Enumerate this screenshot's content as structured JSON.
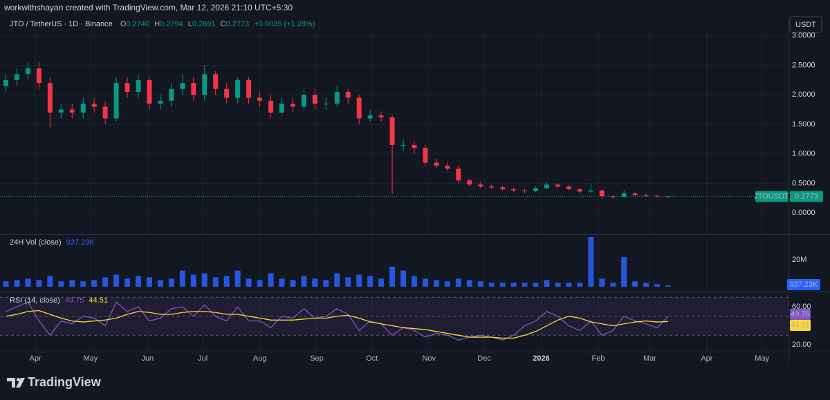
{
  "header": {
    "credit": "workwithshayan created with TradingView.com, Mar 12, 2026 21:10 UTC+5:30",
    "symbol": "JTO / TetherUS · 1D · Binance",
    "ohlc": [
      {
        "key": "O",
        "value": "0.2740"
      },
      {
        "key": "H",
        "value": "0.2794"
      },
      {
        "key": "L",
        "value": "0.2691"
      },
      {
        "key": "C",
        "value": "0.2773"
      }
    ],
    "change": "+0.0035 (+1.28%)"
  },
  "footer": {
    "brand": "TradingView"
  },
  "chart_data": [
    {
      "type": "candlestick",
      "currency": "USDT",
      "last_label": "JTOUSDT",
      "up_color": "#089981",
      "down_color": "#f23645",
      "grid": true,
      "x": [
        -16,
        -10,
        -4,
        2,
        8,
        14,
        20,
        26,
        32,
        38,
        44,
        50,
        56,
        62,
        68,
        74,
        80,
        86,
        92,
        98,
        104,
        110,
        116,
        122,
        128,
        134,
        140,
        146,
        152,
        158,
        164,
        170,
        176,
        182,
        188,
        194,
        200,
        206,
        212,
        218,
        224,
        230,
        236,
        242,
        248,
        254,
        260,
        266,
        272,
        278,
        284,
        290,
        296,
        302,
        308,
        314,
        320,
        326,
        332,
        338,
        344
      ],
      "open": [
        2.15,
        2.25,
        2.35,
        2.45,
        2.2,
        1.7,
        1.75,
        1.7,
        1.85,
        1.8,
        1.6,
        2.2,
        2.05,
        2.25,
        1.85,
        1.9,
        2.1,
        2.2,
        2.0,
        2.35,
        2.1,
        1.95,
        2.25,
        1.95,
        1.9,
        1.7,
        1.85,
        1.8,
        2.0,
        1.85,
        1.85,
        2.05,
        1.95,
        1.6,
        1.65,
        1.62,
        1.15,
        1.15,
        1.1,
        0.85,
        0.8,
        0.75,
        0.55,
        0.48,
        0.45,
        0.43,
        0.4,
        0.38,
        0.37,
        0.42,
        0.48,
        0.45,
        0.4,
        0.36,
        0.38,
        0.28,
        0.27,
        0.33,
        0.3,
        0.29,
        0.274
      ],
      "high": [
        2.35,
        2.45,
        2.55,
        2.55,
        2.3,
        1.85,
        1.85,
        1.95,
        1.95,
        1.9,
        2.3,
        2.3,
        2.35,
        2.3,
        2.0,
        2.2,
        2.35,
        2.3,
        2.5,
        2.4,
        2.2,
        2.3,
        2.3,
        2.05,
        2.0,
        1.95,
        1.95,
        2.1,
        2.1,
        1.95,
        2.15,
        2.1,
        2.0,
        1.75,
        1.72,
        1.65,
        1.25,
        1.2,
        1.15,
        0.92,
        0.86,
        0.8,
        0.58,
        0.52,
        0.48,
        0.46,
        0.43,
        0.41,
        0.45,
        0.52,
        0.5,
        0.47,
        0.42,
        0.5,
        0.4,
        0.3,
        0.38,
        0.35,
        0.32,
        0.3,
        0.2794
      ],
      "low": [
        2.05,
        2.15,
        2.25,
        2.1,
        1.45,
        1.6,
        1.6,
        1.6,
        1.7,
        1.5,
        1.55,
        1.95,
        1.95,
        1.75,
        1.75,
        1.8,
        2.0,
        1.9,
        1.9,
        2.0,
        1.85,
        1.85,
        1.85,
        1.8,
        1.6,
        1.65,
        1.7,
        1.75,
        1.75,
        1.75,
        1.8,
        1.85,
        1.5,
        1.55,
        1.55,
        0.32,
        1.05,
        1.0,
        0.8,
        0.75,
        0.7,
        0.5,
        0.45,
        0.42,
        0.4,
        0.37,
        0.35,
        0.34,
        0.35,
        0.4,
        0.42,
        0.38,
        0.33,
        0.34,
        0.24,
        0.24,
        0.26,
        0.28,
        0.27,
        0.26,
        0.2691
      ],
      "close": [
        2.25,
        2.35,
        2.45,
        2.2,
        1.7,
        1.75,
        1.7,
        1.85,
        1.8,
        1.6,
        2.2,
        2.05,
        2.25,
        1.85,
        1.9,
        2.1,
        2.2,
        2.0,
        2.35,
        2.1,
        1.95,
        2.25,
        1.95,
        1.9,
        1.7,
        1.85,
        1.8,
        2.0,
        1.85,
        1.85,
        2.05,
        1.95,
        1.6,
        1.65,
        1.62,
        1.15,
        1.15,
        1.1,
        0.85,
        0.8,
        0.75,
        0.55,
        0.48,
        0.45,
        0.43,
        0.4,
        0.38,
        0.37,
        0.42,
        0.48,
        0.45,
        0.4,
        0.36,
        0.38,
        0.28,
        0.27,
        0.33,
        0.3,
        0.29,
        0.28,
        0.2773
      ],
      "ylim": [
        -0.35,
        3.08
      ],
      "yticks": [
        {
          "value": 0,
          "label": "0.0000"
        },
        {
          "value": 0.5,
          "label": "0.5000"
        },
        {
          "value": 1,
          "label": "1.0000"
        },
        {
          "value": 1.5,
          "label": "1.5000"
        },
        {
          "value": 2,
          "label": "2.0000"
        },
        {
          "value": 2.5,
          "label": "2.5000"
        },
        {
          "value": 3,
          "label": "3.0000"
        }
      ]
    },
    {
      "type": "bar",
      "title": "24H Vol (close)",
      "color": "#2962ff",
      "values": [
        4,
        5,
        6,
        5,
        8,
        4,
        5,
        4,
        5,
        7,
        9,
        6,
        8,
        7,
        5,
        6,
        12,
        9,
        10,
        7,
        8,
        12,
        6,
        5,
        10,
        6,
        5,
        8,
        6,
        5,
        10,
        7,
        9,
        8,
        6,
        15,
        12,
        8,
        6,
        5,
        4,
        6,
        5,
        4,
        3,
        3,
        3,
        3,
        3,
        5,
        3,
        3,
        3,
        37,
        6,
        3,
        22,
        4,
        3,
        2,
        0.93723
      ],
      "last_value_label": "937.23K",
      "ylim": [
        0,
        37.5
      ],
      "yticks": [
        {
          "value": 20,
          "label": "20M"
        }
      ]
    },
    {
      "type": "line",
      "title": "RSI (14, close)",
      "series": [
        {
          "name": "RSI",
          "color": "#7e57c2",
          "values": [
            55,
            60,
            65,
            45,
            30,
            45,
            42,
            50,
            48,
            40,
            65,
            55,
            60,
            45,
            48,
            58,
            60,
            50,
            62,
            50,
            45,
            60,
            45,
            45,
            38,
            50,
            48,
            58,
            48,
            50,
            58,
            52,
            35,
            45,
            42,
            30,
            38,
            35,
            28,
            32,
            30,
            25,
            28,
            30,
            28,
            25,
            30,
            40,
            45,
            55,
            50,
            40,
            35,
            45,
            30,
            35,
            50,
            45,
            42,
            38,
            49.75
          ]
        },
        {
          "name": "RSI-based MA",
          "color": "#fdd835",
          "values": [
            50,
            52,
            55,
            56,
            52,
            48,
            45,
            44,
            45,
            46,
            48,
            52,
            55,
            54,
            52,
            52,
            54,
            55,
            55,
            54,
            52,
            52,
            50,
            48,
            46,
            46,
            46,
            47,
            48,
            48,
            50,
            51,
            48,
            44,
            42,
            40,
            38,
            37,
            36,
            34,
            32,
            30,
            28,
            28,
            28,
            27,
            27,
            30,
            34,
            40,
            46,
            50,
            48,
            44,
            42,
            40,
            42,
            44,
            45,
            44,
            44.51
          ]
        }
      ],
      "levels": [
        70,
        50,
        30
      ],
      "ylim": [
        13.5,
        73.1
      ],
      "yticks": [
        {
          "value": 20,
          "label": "20.00"
        },
        {
          "value": 60,
          "label": "60.00"
        }
      ],
      "xlim": [
        -19.2,
        409.4
      ],
      "xticks": [
        {
          "value": 0,
          "label": "Apr"
        },
        {
          "value": 30,
          "label": "May"
        },
        {
          "value": 61,
          "label": "Jun"
        },
        {
          "value": 91,
          "label": "Jul"
        },
        {
          "value": 122,
          "label": "Aug"
        },
        {
          "value": 153,
          "label": "Sep"
        },
        {
          "value": 183,
          "label": "Oct"
        },
        {
          "value": 214,
          "label": "Nov"
        },
        {
          "value": 244,
          "label": "Dec"
        },
        {
          "value": 275,
          "label": "2026"
        },
        {
          "value": 306,
          "label": "Feb"
        },
        {
          "value": 334,
          "label": "Mar"
        },
        {
          "value": 365,
          "label": "Apr"
        },
        {
          "value": 395,
          "label": "May"
        }
      ]
    }
  ]
}
